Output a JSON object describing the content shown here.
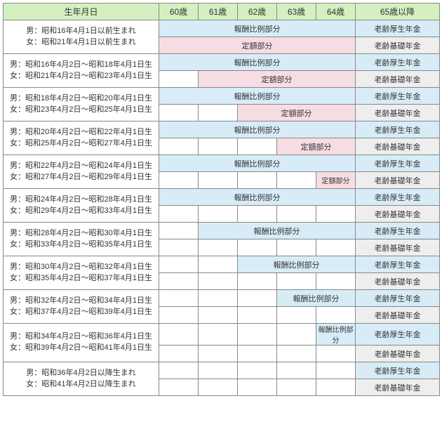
{
  "header": {
    "birth": "生年月日",
    "ages": [
      "60歳",
      "61歳",
      "62歳",
      "63歳",
      "64歳"
    ],
    "after65": "65歳以降"
  },
  "labels": {
    "hirei": "報酬比例部分",
    "teigaku": "定額部分",
    "kousei": "老齢厚生年金",
    "kiso": "老齢基礎年金"
  },
  "rows": [
    {
      "m": "男：昭和16年4月1日以前生まれ",
      "f": "女：昭和21年4月1日以前生まれ",
      "hStart": 0,
      "tStart": 0
    },
    {
      "m": "男：昭和16年4月2日～昭和18年4月1日生",
      "f": "女：昭和21年4月2日～昭和23年4月1日生",
      "hStart": 0,
      "tStart": 1
    },
    {
      "m": "男：昭和18年4月2日～昭和20年4月1日生",
      "f": "女：昭和23年4月2日～昭和25年4月1日生",
      "hStart": 0,
      "tStart": 2
    },
    {
      "m": "男：昭和20年4月2日～昭和22年4月1日生",
      "f": "女：昭和25年4月2日～昭和27年4月1日生",
      "hStart": 0,
      "tStart": 3
    },
    {
      "m": "男：昭和22年4月2日～昭和24年4月1日生",
      "f": "女：昭和27年4月2日～昭和29年4月1日生",
      "hStart": 0,
      "tStart": 4
    },
    {
      "m": "男：昭和24年4月2日～昭和28年4月1日生",
      "f": "女：昭和29年4月2日～昭和33年4月1日生",
      "hStart": 0,
      "tStart": null
    },
    {
      "m": "男：昭和28年4月2日～昭和30年4月1日生",
      "f": "女：昭和33年4月2日～昭和35年4月1日生",
      "hStart": 1,
      "tStart": null
    },
    {
      "m": "男：昭和30年4月2日～昭和32年4月1日生",
      "f": "女：昭和35年4月2日～昭和37年4月1日生",
      "hStart": 2,
      "tStart": null
    },
    {
      "m": "男：昭和32年4月2日～昭和34年4月1日生",
      "f": "女：昭和37年4月2日～昭和39年4月1日生",
      "hStart": 3,
      "tStart": null
    },
    {
      "m": "男：昭和34年4月2日～昭和36年4月1日生",
      "f": "女：昭和39年4月2日～昭和41年4月1日生",
      "hStart": 4,
      "tStart": null
    },
    {
      "m": "男：昭和36年4月2日以降生まれ",
      "f": "女：昭和41年4月2日以降生まれ",
      "hStart": null,
      "tStart": null
    }
  ],
  "colors": {
    "header_bg": "#d5f0c0",
    "kousei_bg": "#d7ecf7",
    "kiso_bg": "#f7dde3",
    "post65_kiso_bg": "#eeeeee",
    "border": "#888888"
  }
}
